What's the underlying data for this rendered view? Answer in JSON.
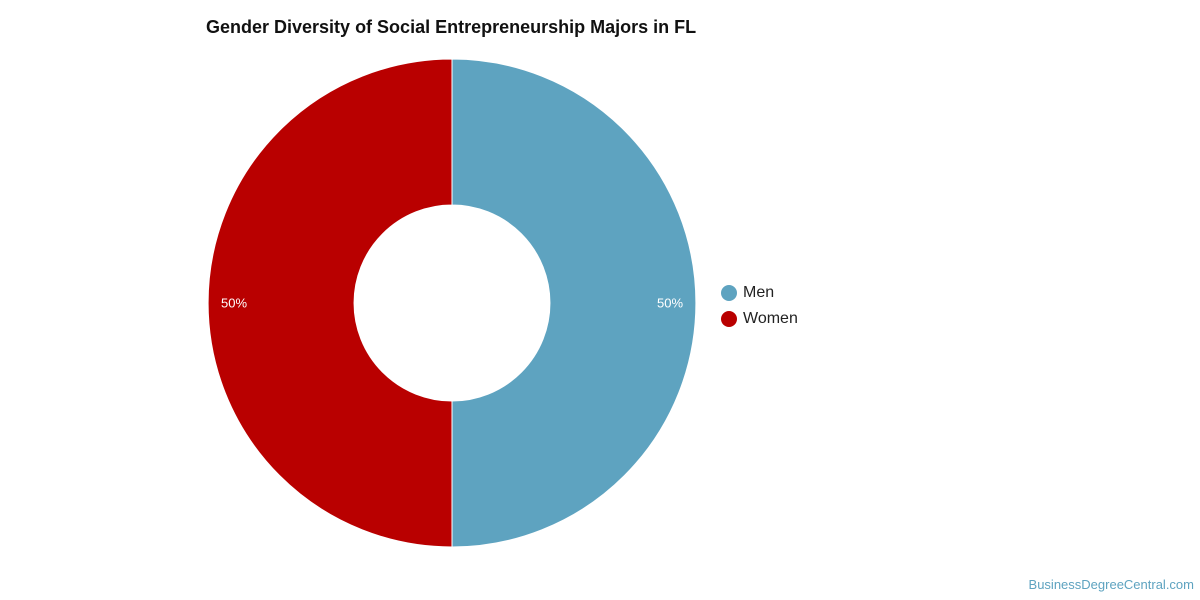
{
  "chart_data": {
    "type": "pie",
    "title": "Gender Diversity of Social Entrepreneurship Majors in FL",
    "donut": true,
    "slices": [
      {
        "label": "Men",
        "value": 50,
        "value_label": "50%",
        "color": "#5ea3c0"
      },
      {
        "label": "Women",
        "value": 50,
        "value_label": "50%",
        "color": "#b90000"
      }
    ],
    "legend_position": "right"
  },
  "watermark": "BusinessDegreeCentral.com"
}
